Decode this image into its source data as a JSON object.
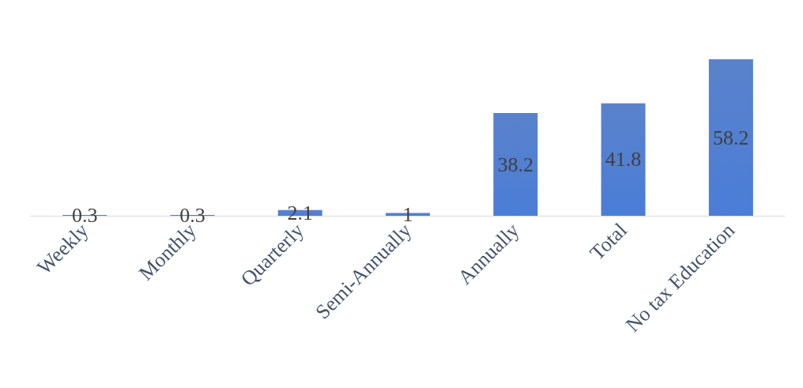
{
  "chart_data": {
    "type": "bar",
    "categories": [
      "Weekly",
      "Monthly",
      "Quarterly",
      "Semi-Annually",
      "Annually",
      "Total",
      "No tax Education"
    ],
    "values": [
      0.3,
      0.3,
      2.1,
      1,
      38.2,
      41.8,
      58.2
    ],
    "color": "#4472c4",
    "data_labels": true
  }
}
